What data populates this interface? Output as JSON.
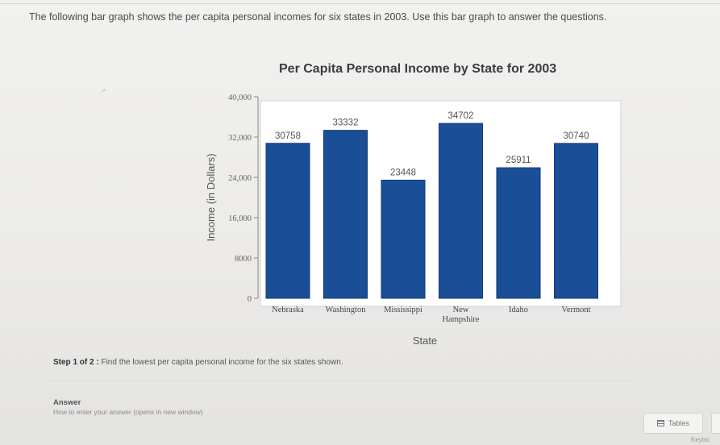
{
  "question": {
    "text": "The following bar graph shows the per capita personal incomes for six states in 2003. Use this bar graph to answer the questions."
  },
  "chart_data": {
    "type": "bar",
    "title": "Per Capita Personal Income by State for 2003",
    "xlabel": "State",
    "ylabel": "Income (in Dollars)",
    "ylim": [
      0,
      40000
    ],
    "yticks": [
      "0",
      "8000",
      "16,000",
      "24,000",
      "32,000",
      "40,000"
    ],
    "ytick_values": [
      0,
      8000,
      16000,
      24000,
      32000,
      40000
    ],
    "categories": [
      "Nebraska",
      "Washington",
      "Mississippi",
      "New Hampshire",
      "Idaho",
      "Vermont"
    ],
    "category_lines": [
      [
        "Nebraska"
      ],
      [
        "Washington"
      ],
      [
        "Mississippi"
      ],
      [
        "New",
        "Hampshire"
      ],
      [
        "Idaho"
      ],
      [
        "Vermont"
      ]
    ],
    "values": [
      30758,
      33332,
      23448,
      34702,
      25911,
      30740
    ],
    "value_labels": [
      "30758",
      "33332",
      "23448",
      "34702",
      "25911",
      "30740"
    ],
    "grid": false,
    "bar_color": "#1a4f98"
  },
  "step": {
    "label": "Step 1 of 2 :",
    "text": "Find the lowest per capita personal income for the six states shown."
  },
  "answer": {
    "label": "Answer",
    "help_link": "How to enter your answer (opens in new window)"
  },
  "toolbar": {
    "tables_label": "Tables",
    "keyboard_label": "Keybo"
  }
}
